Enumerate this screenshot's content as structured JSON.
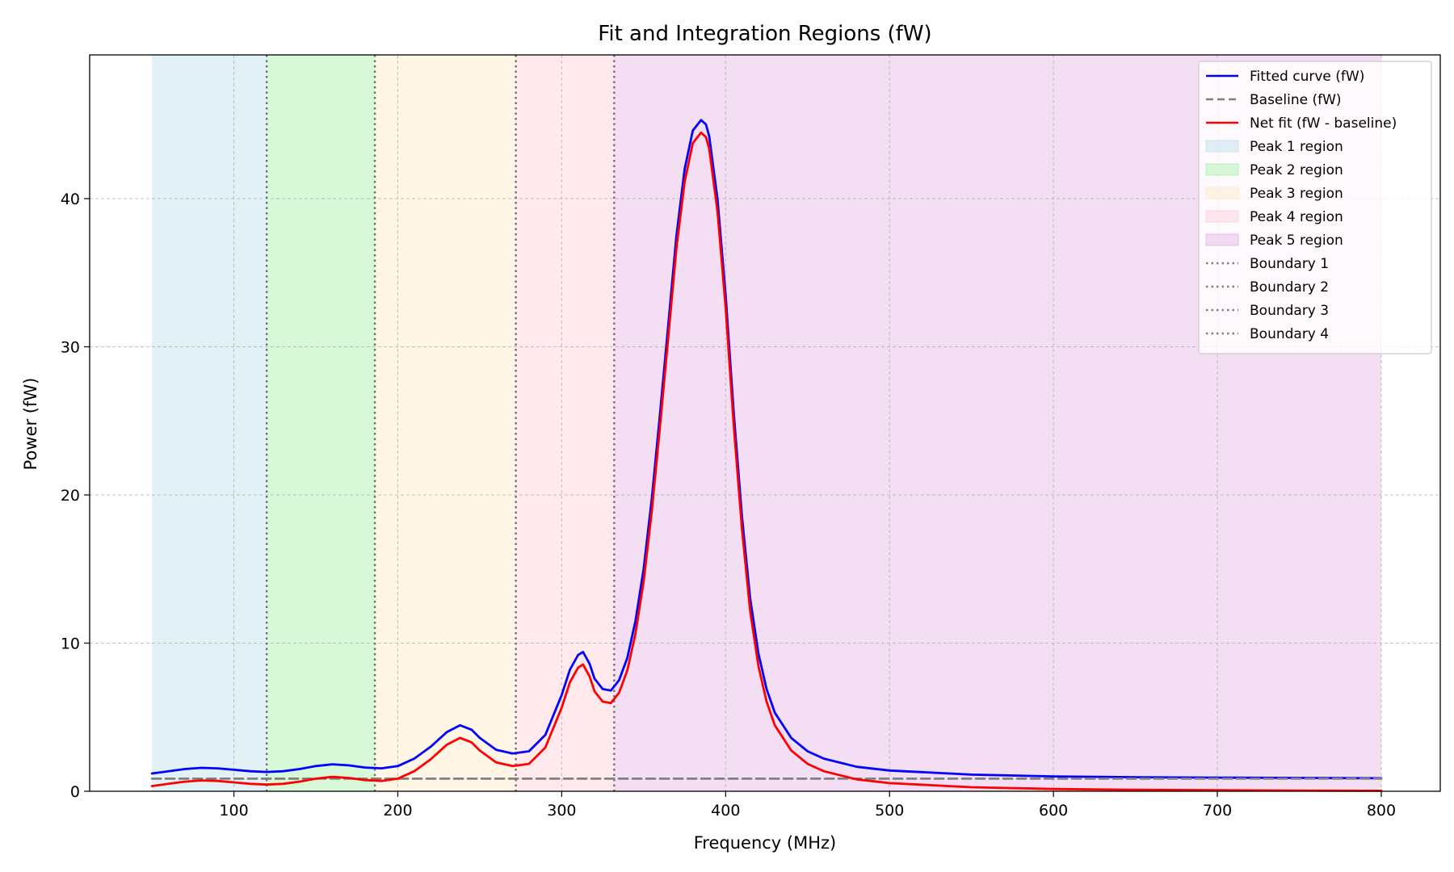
{
  "chart_data": {
    "type": "line",
    "title": "Fit and Integration Regions (fW)",
    "xlabel": "Frequency (MHz)",
    "ylabel": "Power (fW)",
    "xlim": [
      12,
      836
    ],
    "ylim": [
      0,
      49.7
    ],
    "x_ticks": [
      100,
      200,
      300,
      400,
      500,
      600,
      700,
      800
    ],
    "y_ticks": [
      0,
      10,
      20,
      30,
      40
    ],
    "grid": true,
    "legend_position": "top-right",
    "regions": [
      {
        "name": "Peak 1 region",
        "x_start": 50,
        "x_end": 120,
        "color": "#add8e6"
      },
      {
        "name": "Peak 2 region",
        "x_start": 120,
        "x_end": 186,
        "color": "#90ee90"
      },
      {
        "name": "Peak 3 region",
        "x_start": 186,
        "x_end": 272,
        "color": "#ffe4b5"
      },
      {
        "name": "Peak 4 region",
        "x_start": 272,
        "x_end": 332,
        "color": "#ffc0cb"
      },
      {
        "name": "Peak 5 region",
        "x_start": 332,
        "x_end": 800,
        "color": "#dda0dd"
      }
    ],
    "boundaries": [
      {
        "name": "Boundary 1",
        "x": 120
      },
      {
        "name": "Boundary 2",
        "x": 186
      },
      {
        "name": "Boundary 3",
        "x": 272
      },
      {
        "name": "Boundary 4",
        "x": 332
      }
    ],
    "series": [
      {
        "name": "Fitted curve (fW)",
        "color": "#0000ff",
        "style": "solid",
        "x": [
          50,
          60,
          70,
          80,
          90,
          100,
          110,
          120,
          130,
          140,
          150,
          160,
          170,
          180,
          190,
          200,
          210,
          220,
          230,
          238,
          245,
          250,
          260,
          270,
          280,
          290,
          300,
          305,
          310,
          313,
          317,
          320,
          325,
          330,
          335,
          340,
          345,
          350,
          355,
          360,
          365,
          370,
          375,
          380,
          385,
          388,
          390,
          395,
          400,
          405,
          410,
          415,
          420,
          425,
          430,
          440,
          450,
          460,
          480,
          500,
          550,
          600,
          650,
          700,
          750,
          800
        ],
        "y": [
          1.2,
          1.35,
          1.5,
          1.58,
          1.55,
          1.45,
          1.35,
          1.3,
          1.35,
          1.5,
          1.7,
          1.82,
          1.75,
          1.6,
          1.55,
          1.7,
          2.2,
          3.0,
          4.0,
          4.45,
          4.15,
          3.6,
          2.8,
          2.55,
          2.7,
          3.8,
          6.5,
          8.2,
          9.2,
          9.4,
          8.6,
          7.6,
          6.9,
          6.8,
          7.5,
          9.0,
          11.5,
          15.0,
          19.8,
          25.5,
          31.5,
          37.5,
          42.0,
          44.6,
          45.3,
          45.0,
          44.2,
          40.0,
          33.5,
          25.5,
          18.5,
          13.0,
          9.3,
          6.9,
          5.3,
          3.6,
          2.7,
          2.2,
          1.65,
          1.4,
          1.12,
          1.0,
          0.95,
          0.92,
          0.9,
          0.88
        ]
      },
      {
        "name": "Baseline (fW)",
        "color": "#808080",
        "style": "dashed",
        "x": [
          50,
          800
        ],
        "y": [
          0.85,
          0.85
        ]
      },
      {
        "name": "Net fit (fW - baseline)",
        "color": "#ff0000",
        "style": "solid",
        "x": [
          50,
          60,
          70,
          80,
          90,
          100,
          110,
          120,
          130,
          140,
          150,
          160,
          170,
          180,
          190,
          200,
          210,
          220,
          230,
          238,
          245,
          250,
          260,
          270,
          280,
          290,
          300,
          305,
          310,
          313,
          317,
          320,
          325,
          330,
          335,
          340,
          345,
          350,
          355,
          360,
          365,
          370,
          375,
          380,
          385,
          388,
          390,
          395,
          400,
          405,
          410,
          415,
          420,
          425,
          430,
          440,
          450,
          460,
          480,
          500,
          550,
          600,
          650,
          700,
          750,
          800
        ],
        "y": [
          0.35,
          0.5,
          0.65,
          0.73,
          0.7,
          0.6,
          0.5,
          0.45,
          0.5,
          0.65,
          0.85,
          0.97,
          0.9,
          0.75,
          0.7,
          0.85,
          1.35,
          2.15,
          3.15,
          3.6,
          3.3,
          2.75,
          1.95,
          1.7,
          1.85,
          2.95,
          5.65,
          7.35,
          8.35,
          8.55,
          7.75,
          6.75,
          6.05,
          5.95,
          6.65,
          8.15,
          10.65,
          14.15,
          18.95,
          24.65,
          30.65,
          36.65,
          41.15,
          43.75,
          44.45,
          44.15,
          43.35,
          39.15,
          32.65,
          24.65,
          17.65,
          12.15,
          8.45,
          6.05,
          4.45,
          2.75,
          1.85,
          1.35,
          0.8,
          0.55,
          0.27,
          0.15,
          0.1,
          0.07,
          0.05,
          0.03
        ]
      }
    ],
    "legend": [
      {
        "label": "Fitted curve (fW)",
        "kind": "line",
        "color": "#0000ff",
        "style": "solid"
      },
      {
        "label": "Baseline (fW)",
        "kind": "line",
        "color": "#808080",
        "style": "dashed"
      },
      {
        "label": "Net fit (fW - baseline)",
        "kind": "line",
        "color": "#ff0000",
        "style": "solid"
      },
      {
        "label": "Peak 1 region",
        "kind": "patch",
        "color": "#add8e6"
      },
      {
        "label": "Peak 2 region",
        "kind": "patch",
        "color": "#90ee90"
      },
      {
        "label": "Peak 3 region",
        "kind": "patch",
        "color": "#ffe4b5"
      },
      {
        "label": "Peak 4 region",
        "kind": "patch",
        "color": "#ffc0cb"
      },
      {
        "label": "Peak 5 region",
        "kind": "patch",
        "color": "#dda0dd"
      },
      {
        "label": "Boundary 1",
        "kind": "line",
        "color": "#808080",
        "style": "dotted"
      },
      {
        "label": "Boundary 2",
        "kind": "line",
        "color": "#808080",
        "style": "dotted"
      },
      {
        "label": "Boundary 3",
        "kind": "line",
        "color": "#808080",
        "style": "dotted"
      },
      {
        "label": "Boundary 4",
        "kind": "line",
        "color": "#808080",
        "style": "dotted"
      }
    ]
  }
}
